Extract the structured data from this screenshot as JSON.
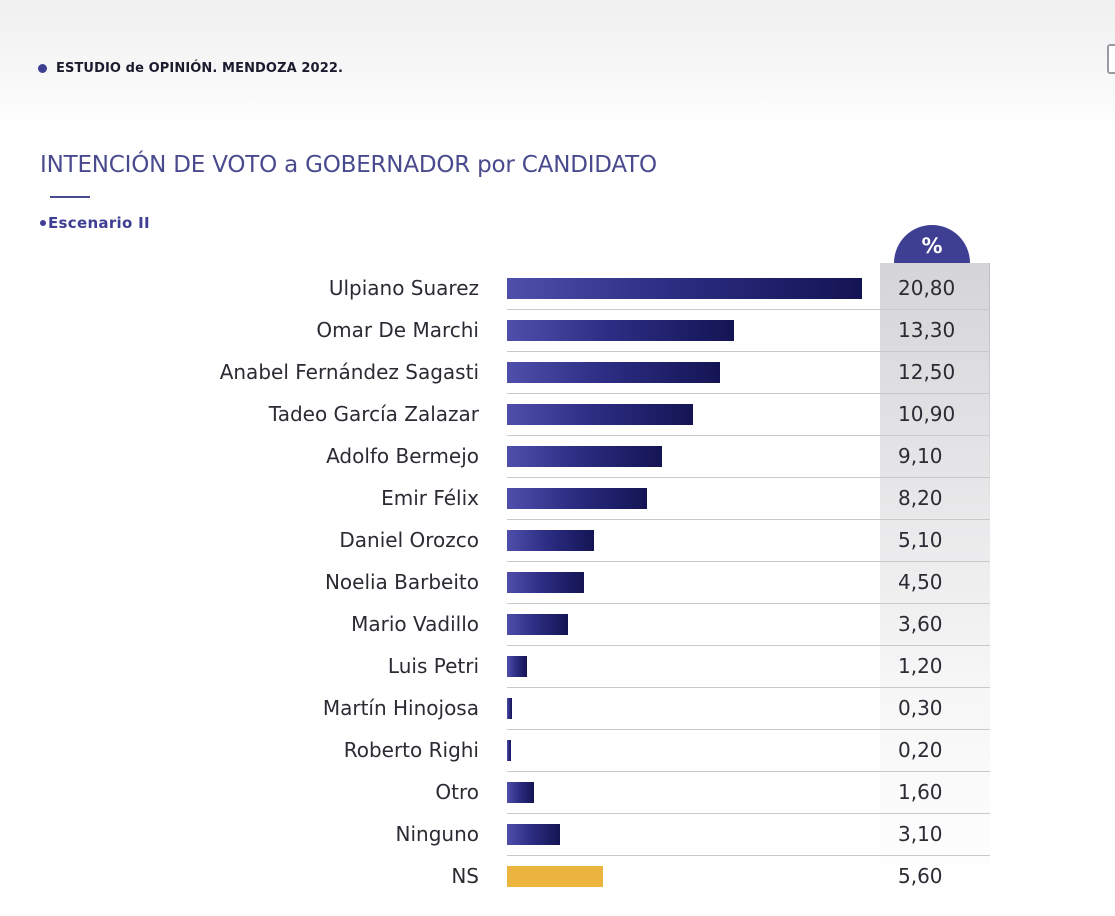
{
  "header": {
    "text": "ESTUDIO de OPINIÓN. MENDOZA 2022."
  },
  "title": "INTENCIÓN DE VOTO a GOBERNADOR por CANDIDATO",
  "subtitle": "Escenario II",
  "colors": {
    "bar": "#2d2d84",
    "ns_bar": "#eab43e",
    "accent": "#3e3e93"
  },
  "chart_data": {
    "type": "bar",
    "orientation": "horizontal",
    "value_header": "%",
    "categories": [
      "Ulpiano Suarez",
      "Omar De Marchi",
      "Anabel Fernández Sagasti",
      "Tadeo García Zalazar",
      "Adolfo Bermejo",
      "Emir Félix",
      "Daniel Orozco",
      "Noelia Barbeito",
      "Mario Vadillo",
      "Luis Petri",
      "Martín Hinojosa",
      "Roberto Righi",
      "Otro",
      "Ninguno",
      "NS"
    ],
    "values": [
      20.8,
      13.3,
      12.5,
      10.9,
      9.1,
      8.2,
      5.1,
      4.5,
      3.6,
      1.2,
      0.3,
      0.2,
      1.6,
      3.1,
      5.6
    ],
    "value_labels": [
      "20,80",
      "13,30",
      "12,50",
      "10,90",
      "9,10",
      "8,20",
      "5,10",
      "4,50",
      "3,60",
      "1,20",
      "0,30",
      "0,20",
      "1,60",
      "3,10",
      "5,60"
    ],
    "highlight_category": "NS"
  }
}
